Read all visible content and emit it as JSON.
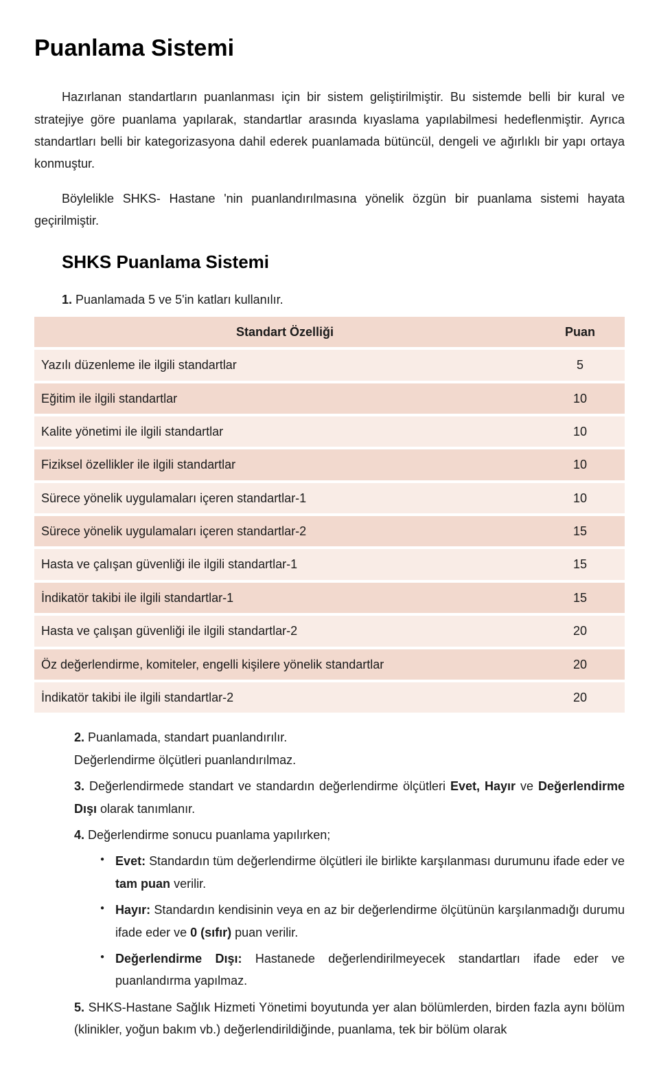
{
  "title": "Puanlama Sistemi",
  "intro": {
    "p1": "Hazırlanan standartların puanlanması için bir sistem geliştirilmiştir. Bu sistemde belli bir kural ve stratejiye göre puanlama yapılarak, standartlar arasında kıyaslama yapılabilmesi hedeflenmiştir. Ayrıca standartları belli bir kategorizasyona dahil ederek puanlamada bütüncül, dengeli ve ağırlıklı bir yapı ortaya konmuştur.",
    "p2": "Böylelikle SHKS- Hastane 'nin puanlandırılmasına yönelik özgün bir puanlama sistemi hayata geçirilmiştir."
  },
  "subtitle": "SHKS Puanlama Sistemi",
  "rule1": {
    "num": "1.",
    "text": " Puanlamada 5 ve 5'in katları kullanılır."
  },
  "table": {
    "header": {
      "col1": "Standart Özelliği",
      "col2": "Puan"
    },
    "rows": [
      {
        "label": "Yazılı düzenleme ile ilgili standartlar",
        "value": "5"
      },
      {
        "label": "Eğitim ile ilgili standartlar",
        "value": "10"
      },
      {
        "label": "Kalite yönetimi ile ilgili standartlar",
        "value": "10"
      },
      {
        "label": "Fiziksel özellikler ile ilgili standartlar",
        "value": "10"
      },
      {
        "label": "Sürece yönelik uygulamaları içeren standartlar-1",
        "value": "10"
      },
      {
        "label": "Sürece yönelik uygulamaları içeren standartlar-2",
        "value": "15"
      },
      {
        "label": "Hasta ve çalışan güvenliği ile ilgili standartlar-1",
        "value": "15"
      },
      {
        "label": "İndikatör takibi ile ilgili standartlar-1",
        "value": "15"
      },
      {
        "label": "Hasta ve çalışan güvenliği ile ilgili standartlar-2",
        "value": "20"
      },
      {
        "label": "Öz değerlendirme, komiteler, engelli kişilere yönelik standartlar",
        "value": "20"
      },
      {
        "label": "İndikatör takibi ile ilgili standartlar-2",
        "value": "20"
      }
    ]
  },
  "rules": {
    "r2": {
      "num": "2.",
      "line1": " Puanlamada, standart puanlandırılır.",
      "line2": "Değerlendirme ölçütleri puanlandırılmaz."
    },
    "r3": {
      "num": "3.",
      "pre": " Değerlendirmede standart ve standardın değerlendirme ölçütleri ",
      "b1": "Evet, Hayır",
      "mid": " ve ",
      "b2": "Değerlendirme Dışı",
      "post": " olarak tanımlanır."
    },
    "r4": {
      "num": "4.",
      "text": " Değerlendirme sonucu puanlama yapılırken;"
    },
    "bullets": {
      "b1": {
        "lead": "Evet:",
        "rest": " Standardın tüm değerlendirme ölçütleri ile birlikte karşılanması durumunu ifade eder ve ",
        "bold": "tam puan",
        "tail": " verilir."
      },
      "b2": {
        "lead": "Hayır:",
        "rest": " Standardın kendisinin veya en az bir değerlendirme ölçütünün karşılanmadığı durumu ifade eder ve ",
        "bold": "0 (sıfır)",
        "tail": " puan verilir."
      },
      "b3": {
        "lead": "Değerlendirme Dışı:",
        "rest": " Hastanede değerlendirilmeyecek standartları ifade eder ve puanlandırma yapılmaz."
      }
    },
    "r5": {
      "num": "5.",
      "text": " SHKS-Hastane Sağlık Hizmeti Yönetimi boyutunda yer alan bölümlerden, birden fazla aynı bölüm (klinikler, yoğun bakım vb.) değerlendirildiğinde, puanlama, tek bir bölüm olarak"
    }
  }
}
